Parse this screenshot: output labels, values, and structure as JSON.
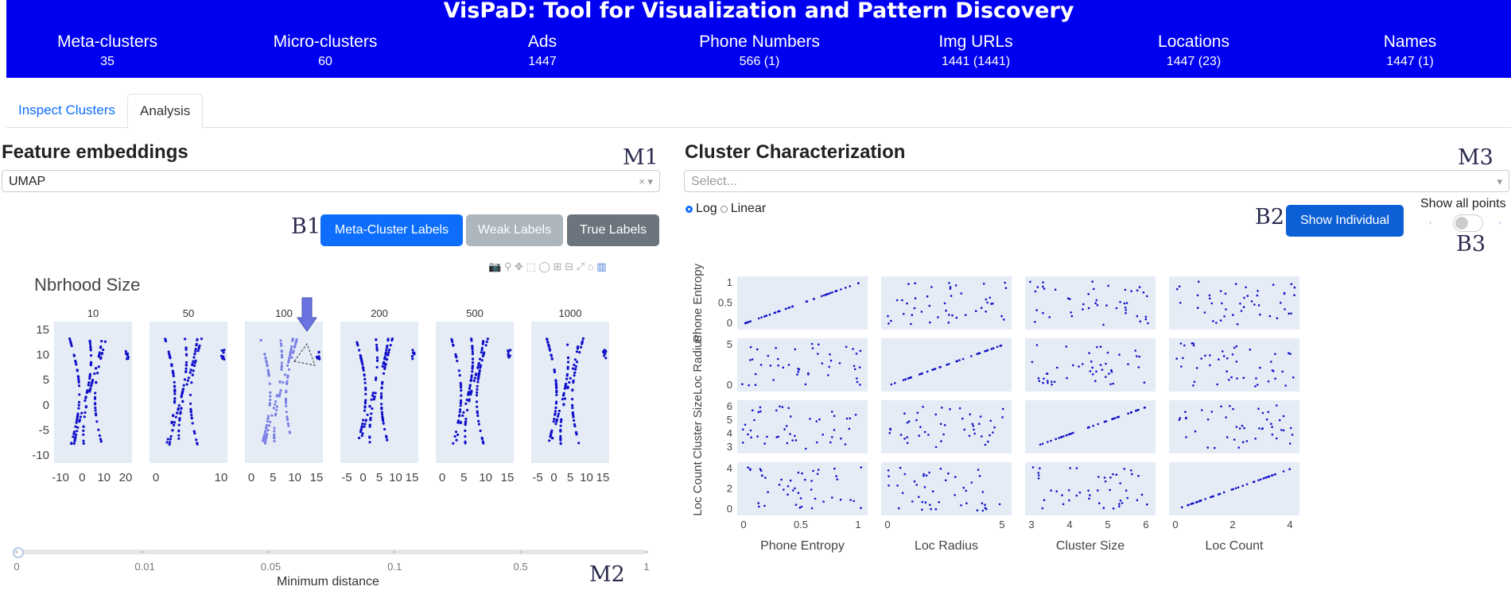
{
  "app": {
    "title": "VisPaD: Tool for Visualization and Pattern Discovery"
  },
  "stats": [
    {
      "label": "Meta-clusters",
      "value": "35"
    },
    {
      "label": "Micro-clusters",
      "value": "60"
    },
    {
      "label": "Ads",
      "value": "1447"
    },
    {
      "label": "Phone Numbers",
      "value": "566 (1)"
    },
    {
      "label": "Img URLs",
      "value": "1441 (1441)"
    },
    {
      "label": "Locations",
      "value": "1447 (23)"
    },
    {
      "label": "Names",
      "value": "1447 (1)"
    }
  ],
  "tabs": [
    {
      "label": "Inspect Clusters",
      "active": false
    },
    {
      "label": "Analysis",
      "active": true
    }
  ],
  "left": {
    "title": "Feature embeddings",
    "marker_m1": "M1",
    "embedding_select": {
      "value": "UMAP",
      "clear_icon": "×"
    },
    "marker_b1": "B1",
    "buttons": [
      "Meta-Cluster Labels",
      "Weak Labels",
      "True Labels"
    ],
    "button_colors": [
      "#0d6efd",
      "#adb5bd",
      "#6c757d"
    ],
    "plot": {
      "title": "Nbrhood Size"
    },
    "slider": {
      "label": "Minimum distance",
      "ticks": [
        "0",
        "0.01",
        "0.05",
        "0.1",
        "0.5",
        "1"
      ],
      "value": "0"
    },
    "marker_m2": "M2"
  },
  "right": {
    "title": "Cluster Characterization",
    "marker_m3": "M3",
    "select": {
      "placeholder": "Select..."
    },
    "scale": {
      "options": [
        "Log",
        "Linear"
      ],
      "selected": "Log"
    },
    "marker_b2": "B2",
    "show_individual": "Show Individual",
    "show_all_label": "Show all points",
    "show_all_on": false,
    "marker_b3": "B3"
  },
  "colors": {
    "header": "#0000f0",
    "point": "#1010c8",
    "grid_bg": "#e5ecf6"
  },
  "chart_data": [
    {
      "type": "scatter",
      "title": "Nbrhood Size",
      "panels": [
        {
          "name": "10",
          "xticks": [
            "-10",
            "0",
            "10",
            "20"
          ],
          "yticks": [
            "15",
            "10",
            "5",
            "0",
            "-5",
            "-10"
          ]
        },
        {
          "name": "50",
          "xticks": [
            "0",
            "10"
          ]
        },
        {
          "name": "100",
          "xticks": [
            "0",
            "5",
            "10",
            "15"
          ]
        },
        {
          "name": "200",
          "xticks": [
            "-5",
            "0",
            "5",
            "10",
            "15"
          ]
        },
        {
          "name": "500",
          "xticks": [
            "0",
            "5",
            "10",
            "15"
          ]
        },
        {
          "name": "1000",
          "xticks": [
            "-5",
            "0",
            "5",
            "10",
            "15"
          ]
        }
      ]
    },
    {
      "type": "scatter",
      "variables": [
        "Phone Entropy",
        "Loc Radius",
        "Cluster Size",
        "Loc Count"
      ],
      "ranges": [
        [
          0,
          1.3
        ],
        [
          0,
          9
        ],
        [
          2.4,
          6.2
        ],
        [
          0,
          5.4
        ]
      ],
      "xticks": [
        [
          "0",
          "0.5",
          "1"
        ],
        [
          "0",
          "5"
        ],
        [
          "3",
          "4",
          "5",
          "6"
        ],
        [
          "0",
          "2",
          "4"
        ]
      ],
      "yticks": [
        [
          "1",
          "0.5",
          "0"
        ],
        [
          "5",
          "0"
        ],
        [
          "6",
          "5",
          "4",
          "3"
        ],
        [
          "4",
          "2",
          "0"
        ]
      ]
    }
  ]
}
